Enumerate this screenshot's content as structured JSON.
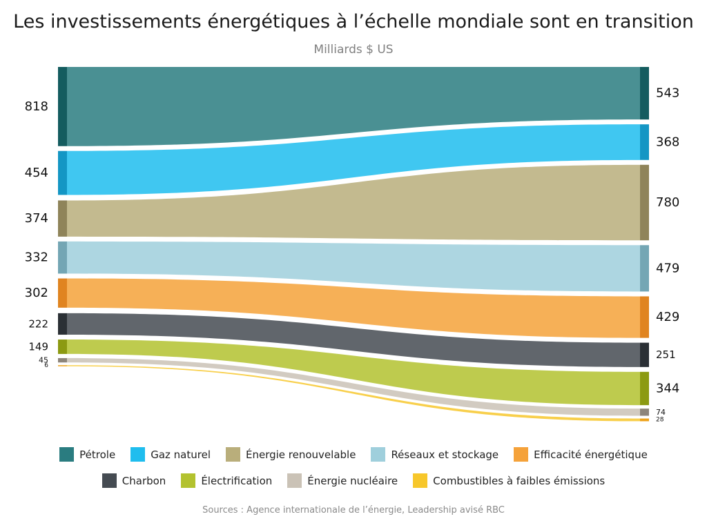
{
  "title": "Les investissements énergétiques à l’échelle mondiale sont en transition",
  "subtitle": "Milliards $ US",
  "source": "Sources : Agence internationale de l’énergie, Leadership avisé RBC",
  "chart_data": {
    "type": "sankey-slope",
    "unit": "Milliards $ US",
    "series": [
      {
        "name": "Pétrole",
        "left": 818,
        "right": 543,
        "color": "#2a7c80",
        "dark": "#145c5f"
      },
      {
        "name": "Gaz naturel",
        "left": 454,
        "right": 368,
        "color": "#1fbdee",
        "dark": "#1496c4"
      },
      {
        "name": "Énergie renouvelable",
        "left": 374,
        "right": 780,
        "color": "#b9ae7b",
        "dark": "#8f845a"
      },
      {
        "name": "Réseaux et stockage",
        "left": 332,
        "right": 479,
        "color": "#9fcfdc",
        "dark": "#74a6b4"
      },
      {
        "name": "Efficacité énergétique",
        "left": 302,
        "right": 429,
        "color": "#f5a23a",
        "dark": "#e08420"
      },
      {
        "name": "Charbon",
        "left": 222,
        "right": 251,
        "color": "#454b52",
        "dark": "#2b3035"
      },
      {
        "name": "Électrification",
        "left": 149,
        "right": 344,
        "color": "#b3c22f",
        "dark": "#8c9a12"
      },
      {
        "name": "Énergie nucléaire",
        "left": 45,
        "right": 74,
        "color": "#cac2b6",
        "dark": "#8d857b"
      },
      {
        "name": "Combustibles à faibles émissions",
        "left": 6,
        "right": 28,
        "color": "#f7c72b",
        "dark": "#eea21a"
      }
    ]
  },
  "legend": {
    "row1": [
      {
        "label": "Pétrole",
        "color": "#2a7c80"
      },
      {
        "label": "Gaz naturel",
        "color": "#1fbdee"
      },
      {
        "label": "Énergie renouvelable",
        "color": "#b9ae7b"
      },
      {
        "label": "Réseaux et stockage",
        "color": "#9fcfdc"
      },
      {
        "label": "Efficacité énergétique",
        "color": "#f5a23a"
      }
    ],
    "row2": [
      {
        "label": "Charbon",
        "color": "#454b52"
      },
      {
        "label": "Électrification",
        "color": "#b3c22f"
      },
      {
        "label": "Énergie nucléaire",
        "color": "#cac2b6"
      },
      {
        "label": "Combustibles à faibles émissions",
        "color": "#f7c72b"
      }
    ]
  }
}
